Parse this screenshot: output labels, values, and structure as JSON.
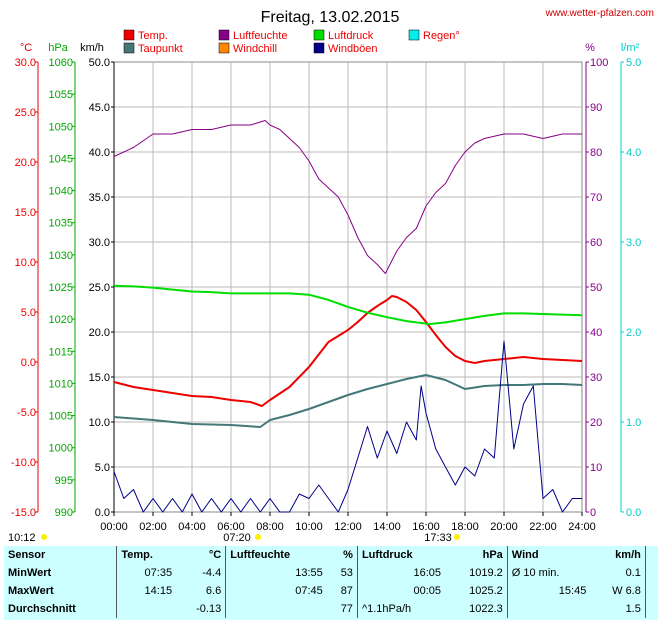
{
  "header": {
    "title": "Freitag, 13.02.2015",
    "website": "www.wetter-pfalzen.com"
  },
  "legend": [
    {
      "label": "Temp.",
      "color": "#ee0000"
    },
    {
      "label": "Luftfeuchte",
      "color": "#880088"
    },
    {
      "label": "Luftdruck",
      "color": "#00dd00"
    },
    {
      "label": "Regen°",
      "color": "#00eeee"
    },
    {
      "label": "Taupunkt",
      "color": "#447777"
    },
    {
      "label": "Windchill",
      "color": "#ff8800"
    },
    {
      "label": "Windböen",
      "color": "#000088"
    }
  ],
  "axis_units": {
    "temp": "°C",
    "pressure": "hPa",
    "wind": "km/h",
    "humidity": "%",
    "rain": "l/m²"
  },
  "sun": {
    "sunrise_time": "07:20",
    "sunset_time": "17:33",
    "left_time": "10:12"
  },
  "stats": {
    "headers": [
      "Sensor",
      "Temp.",
      "°C",
      "Luftfeuchte",
      "%",
      "Luftdruck",
      "hPa",
      "Wind",
      "km/h"
    ],
    "rows": [
      {
        "label": "MinWert",
        "temp_time": "07:35",
        "temp_value": "-4.4",
        "hum_time": "13:55",
        "hum_value": "53",
        "press_time": "16:05",
        "press_value": "1019.2",
        "wind_time": "Ø 10 min.",
        "wind_value": "0.1"
      },
      {
        "label": "MaxWert",
        "temp_time": "14:15",
        "temp_value": "6.6",
        "hum_time": "07:45",
        "hum_value": "87",
        "press_time": "00:05",
        "press_value": "1025.2",
        "wind_time": "15:45",
        "wind_value": "W 6.8"
      },
      {
        "label": "Durchschnitt",
        "temp_time": "",
        "temp_value": "-0.13",
        "hum_time": "",
        "hum_value": "77",
        "press_time": "^1.1hPa/h",
        "press_value": "1022.3",
        "wind_time": "",
        "wind_value": "1.5"
      }
    ]
  },
  "chart_data": {
    "type": "line",
    "x_ticks": [
      "00:00",
      "02:00",
      "04:00",
      "06:00",
      "08:00",
      "10:00",
      "12:00",
      "14:00",
      "16:00",
      "18:00",
      "20:00",
      "22:00",
      "24:00"
    ],
    "xlim_hours": [
      0,
      24
    ],
    "y_axes": {
      "temp": {
        "ticks": [
          "30.0",
          "25.0",
          "20.0",
          "15.0",
          "10.0",
          "5.0",
          "0.0",
          "-5.0",
          "-10.0",
          "-15.0"
        ],
        "ylim": [
          -15,
          30
        ],
        "color": "#ee0000"
      },
      "pressure": {
        "ticks": [
          "1060",
          "1055",
          "1050",
          "1045",
          "1040",
          "1035",
          "1030",
          "1025",
          "1020",
          "1015",
          "1010",
          "1005",
          "1000",
          "995",
          "990"
        ],
        "ylim": [
          990,
          1060
        ],
        "color": "#00aa00"
      },
      "wind": {
        "ticks": [
          "50.0",
          "45.0",
          "40.0",
          "35.0",
          "30.0",
          "25.0",
          "20.0",
          "15.0",
          "10.0",
          "5.0",
          "0.0"
        ],
        "ylim": [
          0,
          50
        ],
        "color": "#000000"
      },
      "humidity": {
        "ticks": [
          "100",
          "90",
          "80",
          "70",
          "60",
          "50",
          "40",
          "30",
          "20",
          "10",
          "0"
        ],
        "ylim": [
          0,
          100
        ],
        "color": "#880088"
      },
      "rain": {
        "ticks": [
          "5.0",
          "4.0",
          "3.0",
          "2.0",
          "1.0",
          "0.0"
        ],
        "ylim": [
          0,
          5
        ],
        "color": "#00cccc"
      }
    },
    "grid": true,
    "series": [
      {
        "name": "Temp.",
        "color": "#ee0000",
        "axis": "temp",
        "x": [
          0,
          1,
          2,
          3,
          4,
          5,
          6,
          7,
          7.58,
          8,
          9,
          10,
          11,
          12,
          12.5,
          13,
          13.5,
          14,
          14.25,
          14.5,
          15,
          15.5,
          16,
          16.5,
          17,
          17.5,
          18,
          18.5,
          19,
          20,
          21,
          22,
          23,
          24
        ],
        "y": [
          -2,
          -2.5,
          -2.8,
          -3.1,
          -3.4,
          -3.5,
          -3.8,
          -4.0,
          -4.4,
          -3.8,
          -2.5,
          -0.5,
          2.0,
          3.2,
          4.0,
          4.9,
          5.6,
          6.2,
          6.6,
          6.5,
          6.0,
          5.2,
          4.0,
          2.7,
          1.5,
          0.6,
          0.1,
          -0.1,
          0.1,
          0.3,
          0.5,
          0.3,
          0.2,
          0.1
        ]
      },
      {
        "name": "Taupunkt",
        "color": "#447777",
        "axis": "temp",
        "x": [
          0,
          2,
          4,
          6,
          7.5,
          8,
          9,
          10,
          11,
          12,
          13,
          14,
          15,
          16,
          17,
          18,
          19,
          20,
          21,
          22,
          23,
          24
        ],
        "y": [
          -5.5,
          -5.8,
          -6.2,
          -6.3,
          -6.5,
          -5.8,
          -5.3,
          -4.7,
          -4.0,
          -3.3,
          -2.7,
          -2.2,
          -1.7,
          -1.3,
          -1.8,
          -2.7,
          -2.4,
          -2.3,
          -2.3,
          -2.2,
          -2.2,
          -2.3
        ]
      },
      {
        "name": "Luftfeuchte",
        "color": "#880088",
        "axis": "humidity",
        "x": [
          0,
          1,
          2,
          3,
          4,
          5,
          6,
          7,
          7.75,
          8,
          8.5,
          9,
          9.5,
          10,
          10.5,
          11,
          11.5,
          12,
          12.5,
          13,
          13.5,
          13.92,
          14.5,
          15,
          15.5,
          16,
          16.5,
          17,
          17.5,
          18,
          18.5,
          19,
          20,
          21,
          22,
          23,
          24
        ],
        "y": [
          79,
          81,
          84,
          84,
          85,
          85,
          86,
          86,
          87,
          86,
          85,
          83,
          81,
          78,
          74,
          72,
          70,
          66,
          61,
          57,
          55,
          53,
          58,
          61,
          63,
          68,
          71,
          73,
          77,
          80,
          82,
          83,
          84,
          84,
          83,
          84,
          84
        ]
      },
      {
        "name": "Luftdruck",
        "color": "#00dd00",
        "axis": "pressure",
        "x": [
          0,
          1,
          2,
          3,
          4,
          5,
          6,
          7,
          8,
          9,
          10,
          11,
          12,
          13,
          14,
          15,
          16,
          16.08,
          17,
          18,
          19,
          20,
          21,
          22,
          23,
          24
        ],
        "y": [
          1025.2,
          1025.1,
          1024.9,
          1024.6,
          1024.3,
          1024.2,
          1024.0,
          1024.0,
          1024.0,
          1024.0,
          1023.8,
          1023.0,
          1021.9,
          1021.0,
          1020.3,
          1019.7,
          1019.3,
          1019.2,
          1019.5,
          1020.0,
          1020.5,
          1020.9,
          1020.9,
          1020.8,
          1020.7,
          1020.6
        ]
      },
      {
        "name": "Windböen",
        "color": "#000088",
        "axis": "wind",
        "x": [
          0,
          0.5,
          1,
          1.5,
          2,
          2.5,
          3,
          3.5,
          4,
          4.5,
          5,
          5.5,
          6,
          6.5,
          7,
          7.5,
          8,
          8.5,
          9,
          9.5,
          10,
          10.5,
          11,
          11.5,
          12,
          12.5,
          13,
          13.5,
          14,
          14.5,
          15,
          15.5,
          15.75,
          16,
          16.5,
          17,
          17.5,
          18,
          18.5,
          19,
          19.5,
          20,
          20.5,
          21,
          21.5,
          22,
          22.5,
          23,
          23.5,
          24
        ],
        "y": [
          4.5,
          1.5,
          2.5,
          0,
          1.5,
          0,
          1.5,
          0,
          2.0,
          0,
          1.5,
          0,
          1.5,
          0,
          1.5,
          0,
          1.5,
          0,
          0,
          2.0,
          1.5,
          3.0,
          1.5,
          0,
          2.5,
          6.0,
          9.5,
          6.0,
          9.0,
          6.5,
          10.0,
          8.0,
          14.0,
          11.0,
          7.0,
          5.0,
          3.0,
          5.0,
          4.0,
          7.0,
          6.0,
          19.0,
          7.0,
          12.0,
          14.0,
          1.5,
          2.5,
          0,
          1.5,
          1.5
        ]
      }
    ]
  }
}
